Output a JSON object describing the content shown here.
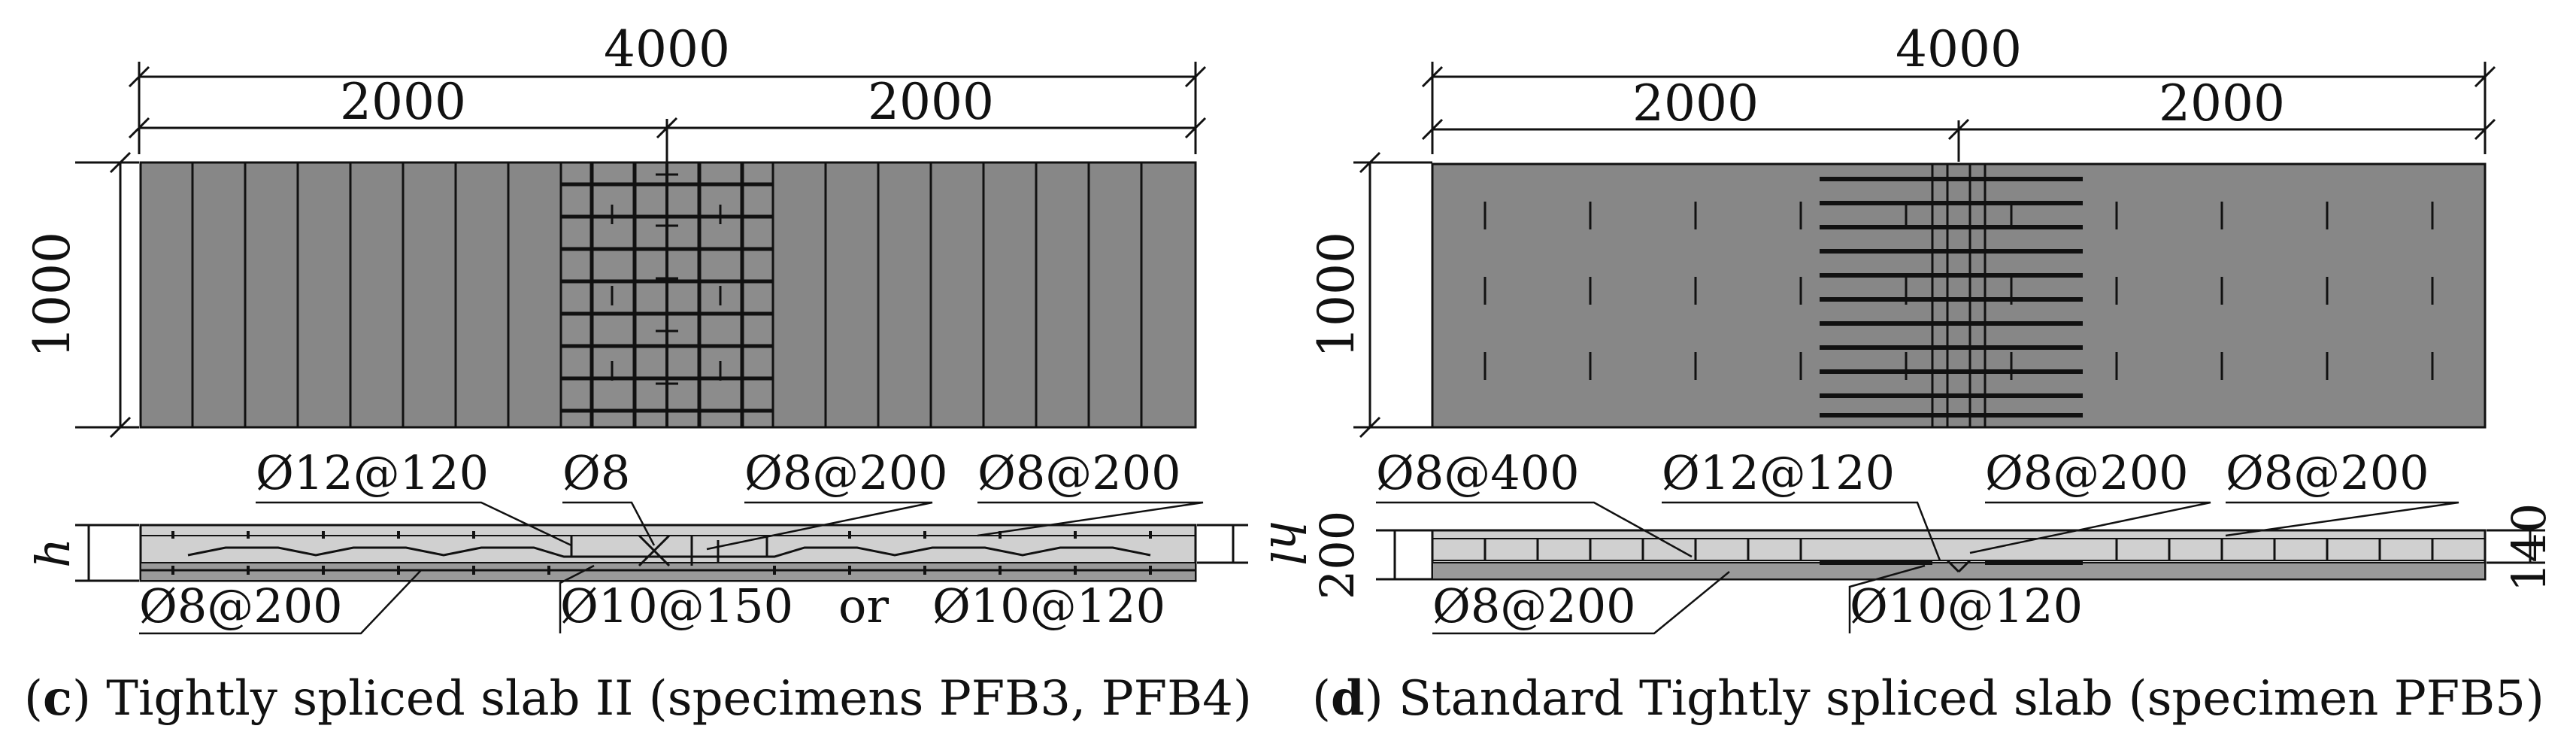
{
  "panel_c": {
    "dims": {
      "total": "4000",
      "left": "2000",
      "right": "2000",
      "height": "1000",
      "h": "h",
      "h1": "hl"
    },
    "labels": {
      "l1": "Ø12@120",
      "l2": "Ø8",
      "l3": "Ø8@200",
      "l4": "Ø8@200",
      "l5": "Ø8@200",
      "l6": "Ø10@150",
      "l6_or": "or",
      "l7": "Ø10@120"
    },
    "caption_letter": "c",
    "caption_text": " Tightly spliced slab II (specimens PFB3, PFB4)"
  },
  "panel_d": {
    "dims": {
      "total": "4000",
      "left": "2000",
      "right": "2000",
      "height": "1000",
      "h_left": "200",
      "h_right": "140"
    },
    "labels": {
      "l1": "Ø8@400",
      "l2": "Ø12@120",
      "l3": "Ø8@200",
      "l4": "Ø8@200",
      "l5": "Ø8@200",
      "l6": "Ø10@120"
    },
    "caption_letter": "d",
    "caption_text": " Standard Tightly spliced slab (specimen PFB5)"
  },
  "colors": {
    "slab_fill": "#878787",
    "section_fill": "#d0d0d0",
    "line": "#111111"
  }
}
